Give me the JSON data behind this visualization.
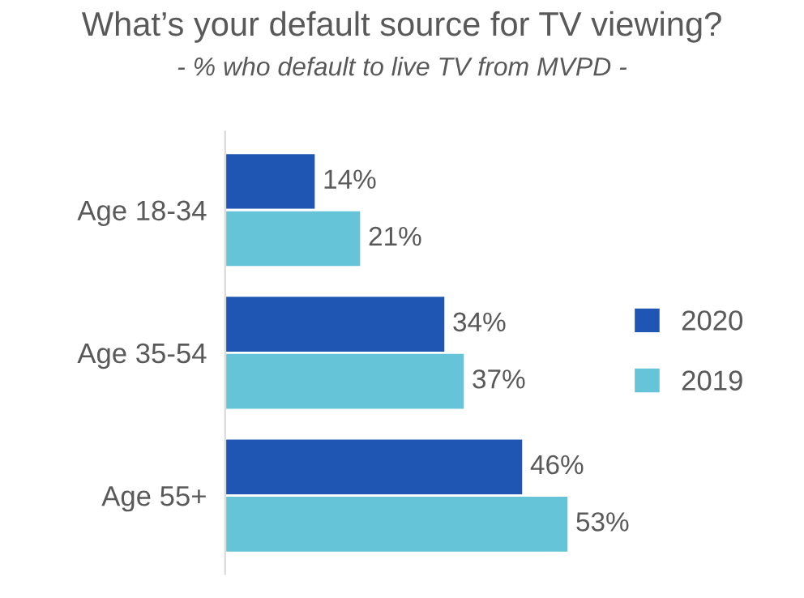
{
  "chart_data": {
    "type": "bar",
    "orientation": "horizontal",
    "title": "What’s your default source for TV viewing?",
    "subtitle": "- % who default to live TV from MVPD -",
    "categories": [
      "Age 18-34",
      "Age 35-54",
      "Age 55+"
    ],
    "series": [
      {
        "name": "2020",
        "color": "#1f56b4",
        "values": [
          14,
          34,
          46
        ],
        "value_labels": [
          "14%",
          "34%",
          "46%"
        ]
      },
      {
        "name": "2019",
        "color": "#66c4d9",
        "values": [
          21,
          37,
          53
        ],
        "value_labels": [
          "21%",
          "37%",
          "53%"
        ]
      }
    ],
    "legend": "right",
    "grid": false,
    "tick_labels": "y"
  }
}
